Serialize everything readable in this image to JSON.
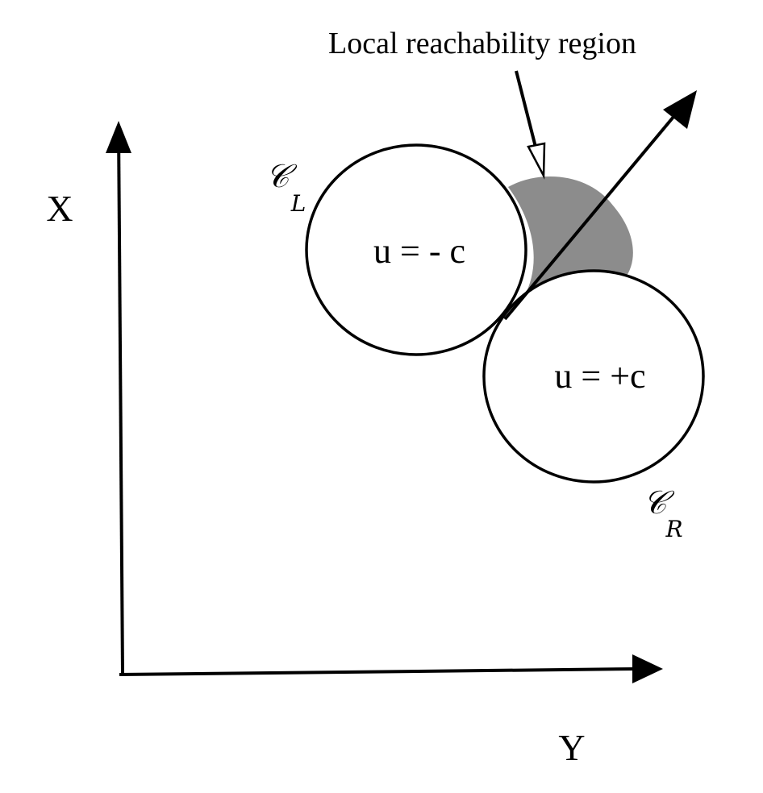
{
  "annotation": {
    "label": "Local reachability region"
  },
  "axes": {
    "vertical_label": "X",
    "horizontal_label": "Y"
  },
  "circles": {
    "left": {
      "name": "𝒞",
      "subscript": "L",
      "control_label": "u = - c"
    },
    "right": {
      "name": "𝒞",
      "subscript": "R",
      "control_label": "u = +c"
    }
  },
  "colors": {
    "stroke": "#000000",
    "region_fill": "#8c8c8c",
    "circle_fill": "#ffffff",
    "background": "#ffffff"
  }
}
